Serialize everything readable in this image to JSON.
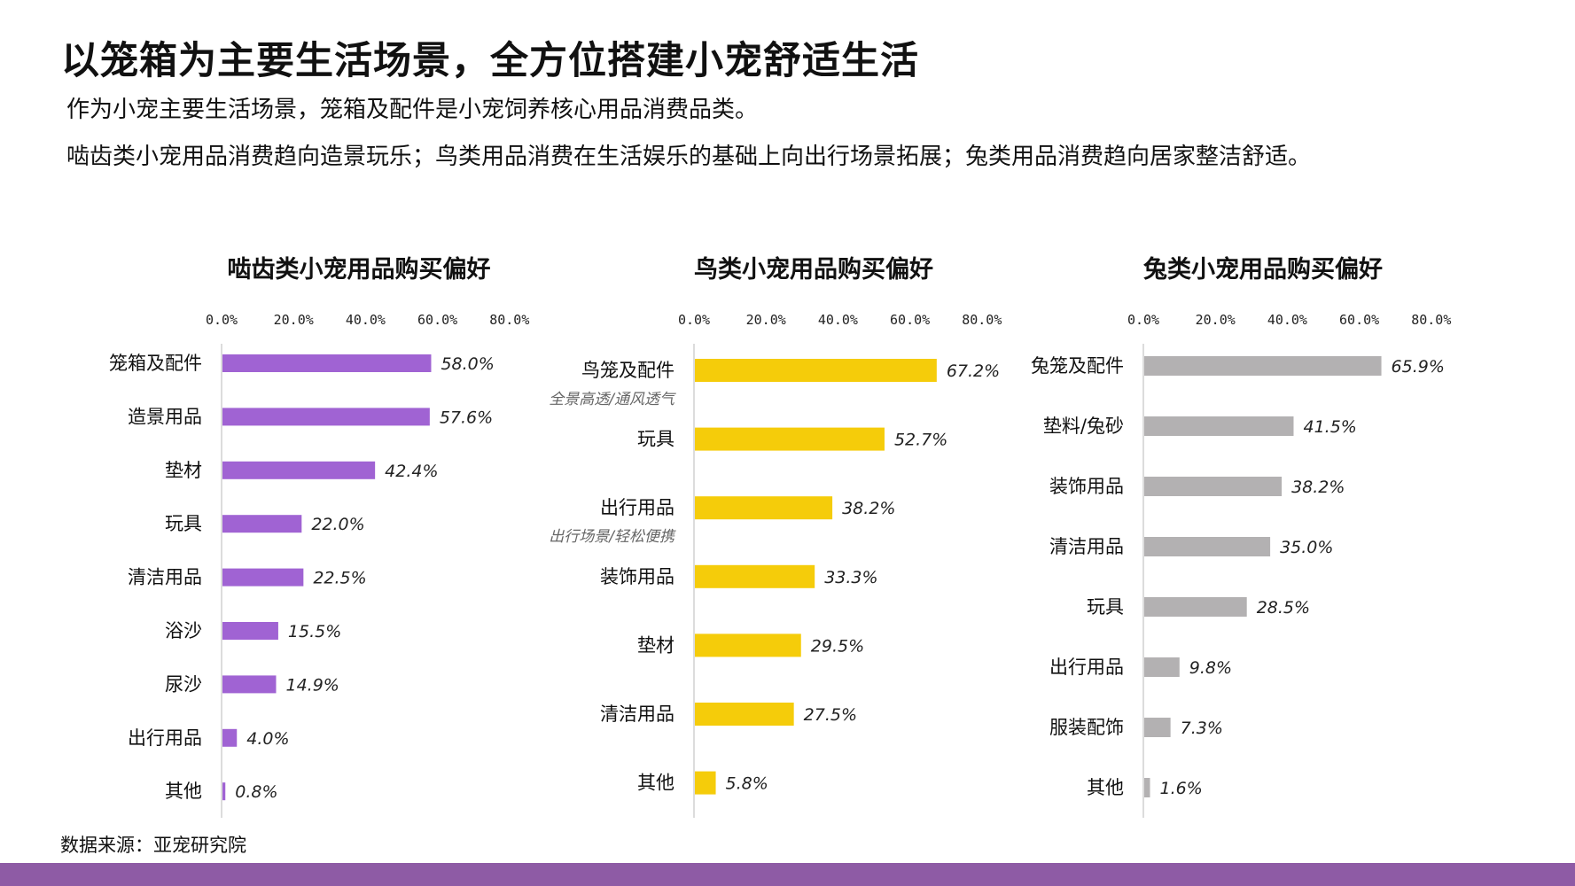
{
  "page": {
    "title": "以笼箱为主要生活场景，全方位搭建小宠舒适生活",
    "description_line1": "作为小宠主要生活场景，笼箱及配件是小宠饲养核心用品消费品类。",
    "description_line2": "啮齿类小宠用品消费趋向造景玩乐；鸟类用品消费在生活娱乐的基础上向出行场景拓展；兔类用品消费趋向居家整洁舒适。",
    "source": "数据来源：亚宠研究院"
  },
  "colors": {
    "rodent": "#a063d3",
    "bird": "#f5cc0a",
    "rabbit": "#b3b1b2",
    "footer_bar": "#8e5ba5"
  },
  "chart_data": [
    {
      "type": "bar",
      "orientation": "horizontal",
      "title": "啮齿类小宠用品购买偏好",
      "categories": [
        "笼箱及配件",
        "造景用品",
        "垫材",
        "玩具",
        "清洁用品",
        "浴沙",
        "尿沙",
        "出行用品",
        "其他"
      ],
      "values": [
        58.0,
        57.6,
        42.4,
        22.0,
        22.5,
        15.5,
        14.9,
        4.0,
        0.8
      ],
      "value_labels": [
        "58.0%",
        "57.6%",
        "42.4%",
        "22.0%",
        "22.5%",
        "15.5%",
        "14.9%",
        "4.0%",
        "0.8%"
      ],
      "axis_ticks": [
        "0.0%",
        "20.0%",
        "40.0%",
        "60.0%",
        "80.0%"
      ],
      "xlim": [
        0,
        80
      ],
      "axis_position": "top",
      "color": "#a063d3"
    },
    {
      "type": "bar",
      "orientation": "horizontal",
      "title": "鸟类小宠用品购买偏好",
      "categories": [
        "鸟笼及配件",
        "玩具",
        "出行用品",
        "装饰用品",
        "垫材",
        "清洁用品",
        "其他"
      ],
      "category_notes": [
        "全景高透/通风透气",
        "",
        "出行场景/轻松便携",
        "",
        "",
        "",
        ""
      ],
      "values": [
        67.2,
        52.7,
        38.2,
        33.3,
        29.5,
        27.5,
        5.8
      ],
      "value_labels": [
        "67.2%",
        "52.7%",
        "38.2%",
        "33.3%",
        "29.5%",
        "27.5%",
        "5.8%"
      ],
      "axis_ticks": [
        "0.0%",
        "20.0%",
        "40.0%",
        "60.0%",
        "80.0%"
      ],
      "xlim": [
        0,
        80
      ],
      "axis_position": "top",
      "color": "#f5cc0a"
    },
    {
      "type": "bar",
      "orientation": "horizontal",
      "title": "兔类小宠用品购买偏好",
      "categories": [
        "兔笼及配件",
        "垫料/兔砂",
        "装饰用品",
        "清洁用品",
        "玩具",
        "出行用品",
        "服装配饰",
        "其他"
      ],
      "values": [
        65.9,
        41.5,
        38.2,
        35.0,
        28.5,
        9.8,
        7.3,
        1.6
      ],
      "value_labels": [
        "65.9%",
        "41.5%",
        "38.2%",
        "35.0%",
        "28.5%",
        "9.8%",
        "7.3%",
        "1.6%"
      ],
      "axis_ticks": [
        "0.0%",
        "20.0%",
        "40.0%",
        "60.0%",
        "80.0%"
      ],
      "xlim": [
        0,
        80
      ],
      "axis_position": "top",
      "color": "#b3b1b2"
    }
  ]
}
